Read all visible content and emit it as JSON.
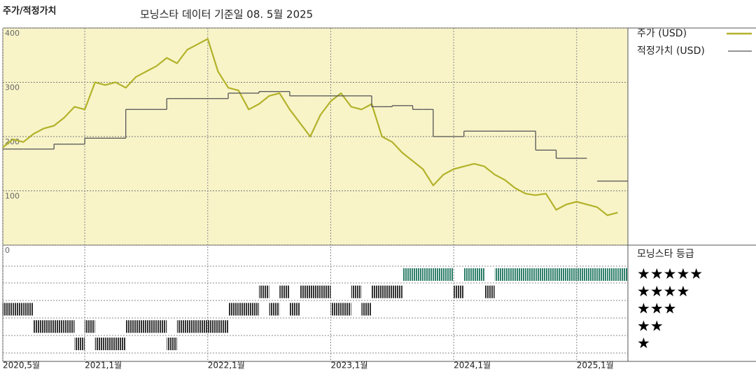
{
  "chart_data": {
    "type": "line",
    "title": "주가/적정가치",
    "subtitle": "모닝스타 데이터 기준일 08. 5월 2025",
    "x": [
      "2020-05",
      "2020-06",
      "2020-07",
      "2020-08",
      "2020-09",
      "2020-10",
      "2020-11",
      "2020-12",
      "2021-01",
      "2021-02",
      "2021-03",
      "2021-04",
      "2021-05",
      "2021-06",
      "2021-07",
      "2021-08",
      "2021-09",
      "2021-10",
      "2021-11",
      "2021-12",
      "2022-01",
      "2022-02",
      "2022-03",
      "2022-04",
      "2022-05",
      "2022-06",
      "2022-07",
      "2022-08",
      "2022-09",
      "2022-10",
      "2022-11",
      "2022-12",
      "2023-01",
      "2023-02",
      "2023-03",
      "2023-04",
      "2023-05",
      "2023-06",
      "2023-07",
      "2023-08",
      "2023-09",
      "2023-10",
      "2023-11",
      "2023-12",
      "2024-01",
      "2024-02",
      "2024-03",
      "2024-04",
      "2024-05",
      "2024-06",
      "2024-07",
      "2024-08",
      "2024-09",
      "2024-10",
      "2024-11",
      "2024-12",
      "2025-01",
      "2025-02",
      "2025-03",
      "2025-04",
      "2025-05"
    ],
    "series": [
      {
        "name": "주가 (USD)",
        "color": "#b3b22a",
        "values": [
          180,
          195,
          190,
          205,
          215,
          220,
          235,
          255,
          250,
          300,
          295,
          300,
          290,
          310,
          320,
          330,
          345,
          335,
          360,
          370,
          380,
          320,
          290,
          285,
          250,
          260,
          275,
          280,
          250,
          225,
          200,
          240,
          265,
          280,
          255,
          250,
          260,
          200,
          190,
          170,
          155,
          140,
          110,
          130,
          140,
          145,
          150,
          145,
          130,
          120,
          105,
          95,
          92,
          95,
          65,
          75,
          80,
          75,
          70,
          55,
          60
        ]
      },
      {
        "name": "적정가치 (USD)",
        "color": "#555555",
        "step": true,
        "values": [
          177,
          177,
          177,
          177,
          177,
          186,
          186,
          186,
          197,
          197,
          197,
          197,
          250,
          250,
          250,
          250,
          270,
          270,
          270,
          270,
          270,
          270,
          280,
          280,
          280,
          283,
          283,
          283,
          275,
          275,
          275,
          275,
          275,
          275,
          275,
          275,
          255,
          255,
          257,
          257,
          250,
          250,
          200,
          200,
          200,
          210,
          210,
          210,
          210,
          210,
          210,
          210,
          175,
          175,
          160,
          160,
          160,
          null,
          118,
          118,
          118
        ]
      }
    ],
    "ylim": [
      0,
      400
    ],
    "yticks": [
      0,
      100,
      200,
      300,
      400
    ],
    "xlim": [
      "2020-05",
      "2025-06"
    ],
    "xticks": [
      {
        "value": "2020-05",
        "label": "2020,5월"
      },
      {
        "value": "2021-01",
        "label": "2021,1월"
      },
      {
        "value": "2022-01",
        "label": "2022,1월"
      },
      {
        "value": "2023-01",
        "label": "2023,1월"
      },
      {
        "value": "2024-01",
        "label": "2024,1월"
      },
      {
        "value": "2025-01",
        "label": "2025,1월"
      }
    ],
    "grid": true,
    "background": "#f8f4c8",
    "rating": {
      "title": "모닝스타 등급",
      "levels": [
        5,
        4,
        3,
        2,
        1
      ],
      "labels": [
        "★★★★★",
        "★★★★",
        "★★★",
        "★★",
        "★"
      ],
      "values": [
        3,
        3,
        3,
        2,
        2,
        2,
        2,
        1,
        2,
        1,
        1,
        1,
        2,
        2,
        2,
        2,
        1,
        2,
        2,
        2,
        2,
        2,
        3,
        3,
        3,
        4,
        3,
        4,
        3,
        4,
        4,
        4,
        3,
        3,
        4,
        3,
        4,
        4,
        4,
        5,
        5,
        5,
        5,
        5,
        4,
        5,
        5,
        4,
        5,
        5,
        5,
        5,
        5,
        5,
        5,
        5,
        5,
        5,
        5,
        5,
        5
      ],
      "color": "#333333",
      "top_color": "#2f7f6a"
    }
  }
}
